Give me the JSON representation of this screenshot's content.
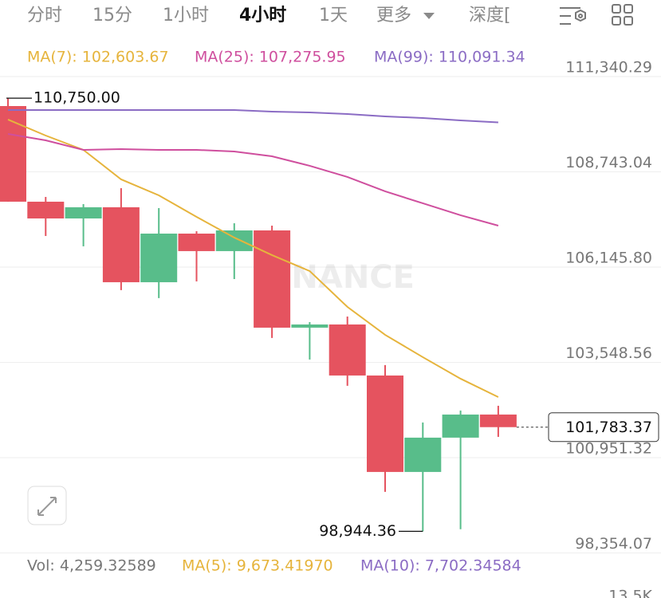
{
  "tabs": [
    "分时",
    "15分",
    "1小时",
    "4小时",
    "1天",
    "更多",
    "深度["
  ],
  "chart_data": {
    "type": "candlestick",
    "open": [
      110536,
      107929,
      107472,
      107777,
      105734,
      107059,
      106582,
      107146,
      104495,
      104582,
      103191,
      100562,
      101497,
      102127
    ],
    "high": [
      110750,
      108059,
      107863,
      108298,
      107755,
      107124,
      107342,
      107276,
      104647,
      104799,
      103474,
      101909,
      102236,
      102366
    ],
    "low": [
      107929,
      106994,
      106712,
      105517,
      105300,
      105756,
      105821,
      104213,
      103626,
      102909,
      100019,
      98944.36,
      99000,
      101518
    ],
    "close": [
      107929,
      107472,
      107777,
      105734,
      107059,
      106582,
      107146,
      104495,
      104582,
      103191,
      100562,
      101497,
      102127,
      101783.37
    ],
    "up_color": "#58bd8a",
    "down_color": "#e5535f",
    "series": [
      {
        "name": "MA(7): 102,603.67",
        "color": "#e6b43c",
        "values": [
          110167,
          109732,
          109341,
          108537,
          108102,
          107516,
          106951,
          106473,
          106038,
          105061,
          104300,
          103691,
          103104,
          102603.67
        ]
      },
      {
        "name": "MA(25): 107,275.95",
        "color": "#cf4f9e",
        "values": [
          109776,
          109602,
          109341,
          109363,
          109341,
          109341,
          109298,
          109167,
          108907,
          108603,
          108211,
          107885,
          107559,
          107275.95
        ]
      },
      {
        "name": "MA(99): 110,091.34",
        "color": "#8b6cc4",
        "values": [
          110428,
          110428,
          110428,
          110428,
          110428,
          110428,
          110428,
          110384,
          110362,
          110319,
          110254,
          110210,
          110145,
          110091.34
        ]
      }
    ],
    "ylim": [
      98354.07,
      111340.29
    ],
    "yticks": [
      {
        "value": 111340.29,
        "label": "111,340.29"
      },
      {
        "value": 108743.04,
        "label": "108,743.04"
      },
      {
        "value": 106145.8,
        "label": "106,145.80"
      },
      {
        "value": 103548.56,
        "label": "103,548.56"
      },
      {
        "value": 100951.32,
        "label": "100,951.32"
      },
      {
        "value": 98354.07,
        "label": "98,354.07"
      }
    ],
    "grid": true,
    "high_label": "110,750.00",
    "low_label": "98,944.36",
    "last_price_label": "101,783.37",
    "watermark": "BINANCE",
    "volume_legend": [
      "Vol: 4,259.32589",
      "MA(5): 9,673.41970",
      "MA(10): 7,702.34584"
    ],
    "volume_axis_label": "13.5K"
  }
}
